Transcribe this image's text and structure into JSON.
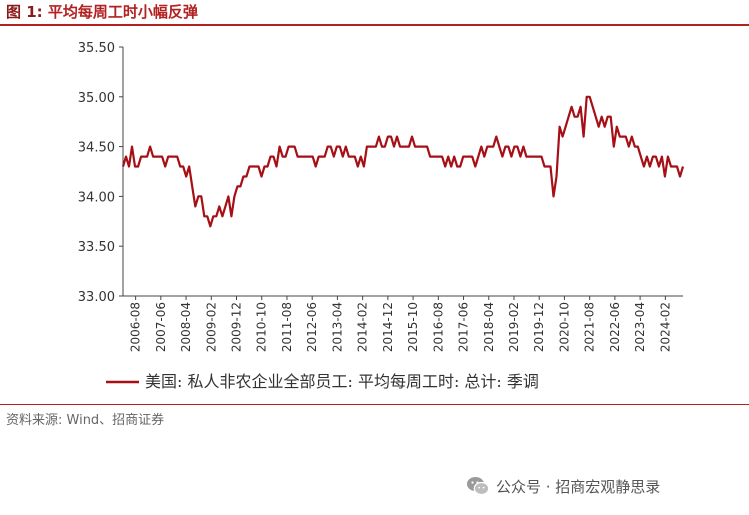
{
  "header": {
    "figure_label": "图 1:",
    "title": "平均每周工时小幅反弹"
  },
  "source": "资料来源: Wind、招商证券",
  "watermark": {
    "text": "公众号 · 招商宏观静思录",
    "icon": "wechat-icon"
  },
  "colors": {
    "accent": "#b22222",
    "series": "#a50f15"
  },
  "chart_data": {
    "type": "line",
    "title": "",
    "xlabel": "",
    "ylabel": "",
    "ylim": [
      33.0,
      35.5
    ],
    "yticks": [
      "33.00",
      "33.50",
      "34.00",
      "34.50",
      "35.00",
      "35.50"
    ],
    "xticks": [
      "2006-08",
      "2007-06",
      "2008-04",
      "2009-02",
      "2009-12",
      "2010-10",
      "2011-08",
      "2012-06",
      "2013-04",
      "2014-02",
      "2014-12",
      "2015-10",
      "2016-08",
      "2017-06",
      "2018-04",
      "2019-02",
      "2019-12",
      "2020-10",
      "2021-08",
      "2022-06",
      "2023-04",
      "2024-02"
    ],
    "x_start": "2006-03",
    "x_end": "2024-09",
    "grid": false,
    "legend_position": "bottom",
    "series": [
      {
        "name": "美国: 私人非农企业全部员工: 平均每周工时: 总计: 季调",
        "values": [
          34.3,
          34.4,
          34.3,
          34.5,
          34.3,
          34.3,
          34.4,
          34.4,
          34.4,
          34.5,
          34.4,
          34.4,
          34.4,
          34.4,
          34.3,
          34.4,
          34.4,
          34.4,
          34.4,
          34.3,
          34.3,
          34.2,
          34.3,
          34.1,
          33.9,
          34.0,
          34.0,
          33.8,
          33.8,
          33.7,
          33.8,
          33.8,
          33.9,
          33.8,
          33.9,
          34.0,
          33.8,
          34.0,
          34.1,
          34.1,
          34.2,
          34.2,
          34.3,
          34.3,
          34.3,
          34.3,
          34.2,
          34.3,
          34.3,
          34.4,
          34.4,
          34.3,
          34.5,
          34.4,
          34.4,
          34.5,
          34.5,
          34.5,
          34.4,
          34.4,
          34.4,
          34.4,
          34.4,
          34.4,
          34.3,
          34.4,
          34.4,
          34.4,
          34.5,
          34.5,
          34.4,
          34.5,
          34.5,
          34.4,
          34.5,
          34.4,
          34.4,
          34.4,
          34.3,
          34.4,
          34.3,
          34.5,
          34.5,
          34.5,
          34.5,
          34.6,
          34.5,
          34.5,
          34.6,
          34.6,
          34.5,
          34.6,
          34.5,
          34.5,
          34.5,
          34.5,
          34.6,
          34.5,
          34.5,
          34.5,
          34.5,
          34.5,
          34.4,
          34.4,
          34.4,
          34.4,
          34.4,
          34.3,
          34.4,
          34.3,
          34.4,
          34.3,
          34.3,
          34.4,
          34.4,
          34.4,
          34.4,
          34.3,
          34.4,
          34.5,
          34.4,
          34.5,
          34.5,
          34.5,
          34.6,
          34.5,
          34.4,
          34.5,
          34.5,
          34.4,
          34.5,
          34.5,
          34.4,
          34.5,
          34.4,
          34.4,
          34.4,
          34.4,
          34.4,
          34.4,
          34.3,
          34.3,
          34.3,
          34.0,
          34.2,
          34.7,
          34.6,
          34.7,
          34.8,
          34.9,
          34.8,
          34.8,
          34.9,
          34.6,
          35.0,
          35.0,
          34.9,
          34.8,
          34.7,
          34.8,
          34.7,
          34.8,
          34.8,
          34.5,
          34.7,
          34.6,
          34.6,
          34.6,
          34.5,
          34.6,
          34.5,
          34.5,
          34.4,
          34.3,
          34.4,
          34.3,
          34.4,
          34.4,
          34.3,
          34.4,
          34.2,
          34.4,
          34.3,
          34.3,
          34.3,
          34.2,
          34.3
        ]
      }
    ]
  }
}
